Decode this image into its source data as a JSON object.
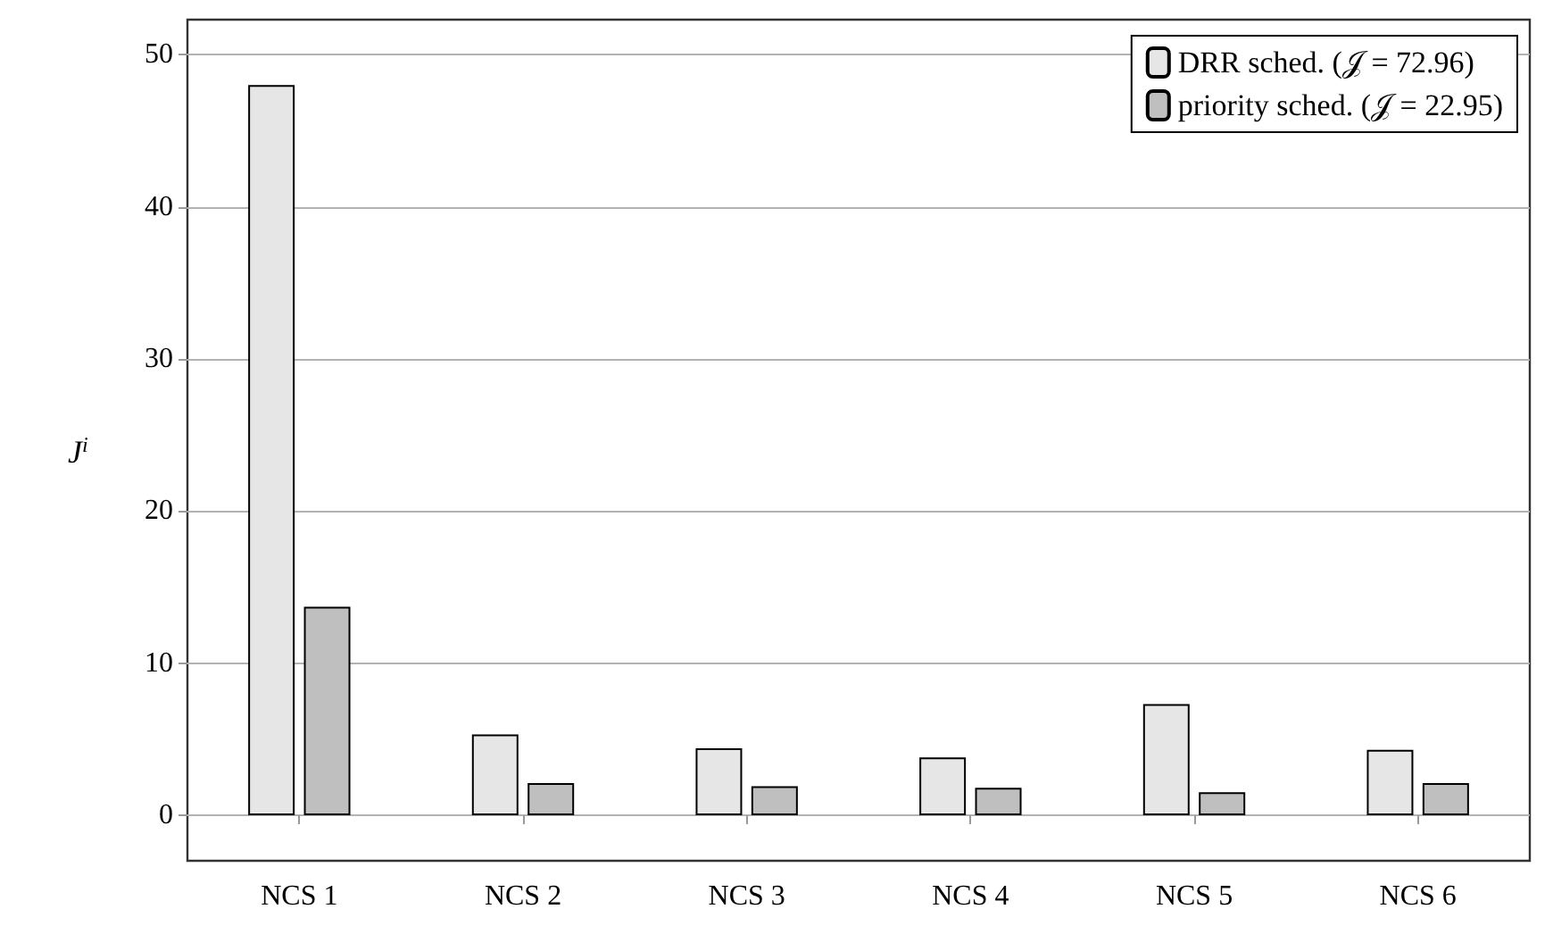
{
  "chart_data": {
    "type": "bar",
    "ylabel": "J$^{i}$",
    "categories": [
      "NCS 1",
      "NCS 2",
      "NCS 3",
      "NCS 4",
      "NCS 5",
      "NCS 6"
    ],
    "series": [
      {
        "name": "DRR sched. (𝒥 = 72.96)",
        "color": "#e6e6e6",
        "values": [
          48,
          5.3,
          4.4,
          3.8,
          7.3,
          4.3
        ]
      },
      {
        "name": "priority sched. (𝒥 = 22.95)",
        "color": "#bfbfbf",
        "values": [
          13.7,
          2.1,
          1.9,
          1.8,
          1.5,
          2.1
        ]
      }
    ],
    "ylim": [
      -3,
      52.3
    ],
    "yticks": [
      0,
      10,
      20,
      30,
      40,
      50
    ],
    "grid": "y",
    "legend": "top right"
  }
}
